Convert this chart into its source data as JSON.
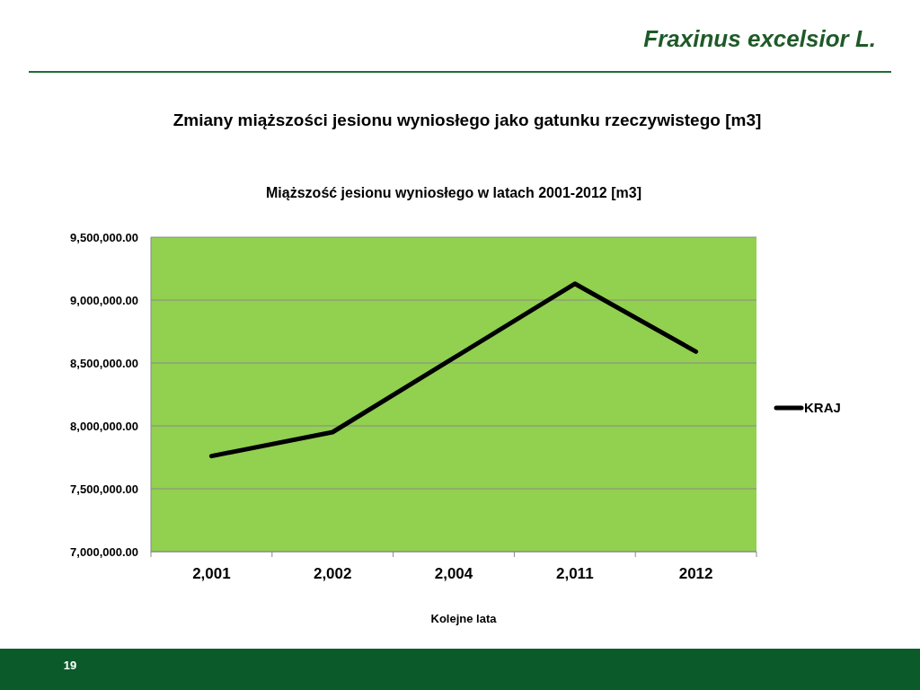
{
  "chart_data": {
    "type": "line",
    "title": "Zmiany miąższości jesionu wyniosłego jako gatunku rzeczywistego [m3]",
    "subtitle": "Miąższość jesionu  wyniosłego w latach 2001-2012 [m3]",
    "xlabel": "Kolejne lata",
    "annotations": [
      "Fraxinus excelsior L.",
      "19"
    ],
    "categories": [
      "2,001",
      "2,002",
      "2,004",
      "2,011",
      "2012"
    ],
    "series": [
      {
        "name": "KRAJ",
        "color": "#000000",
        "values": [
          7760000,
          7950000,
          8540000,
          9130000,
          8590000
        ]
      }
    ],
    "ylim": [
      7000000,
      9500000
    ],
    "yticks": [
      {
        "value": 7000000,
        "label": "7,000,000.00"
      },
      {
        "value": 7500000,
        "label": "7,500,000.00"
      },
      {
        "value": 8000000,
        "label": "8,000,000.00"
      },
      {
        "value": 8500000,
        "label": "8,500,000.00"
      },
      {
        "value": 9000000,
        "label": "9,000,000.00"
      },
      {
        "value": 9500000,
        "label": "9,500,000.00"
      }
    ],
    "grid": "y",
    "legend": "right",
    "marker": "none",
    "line_style": "solid"
  }
}
